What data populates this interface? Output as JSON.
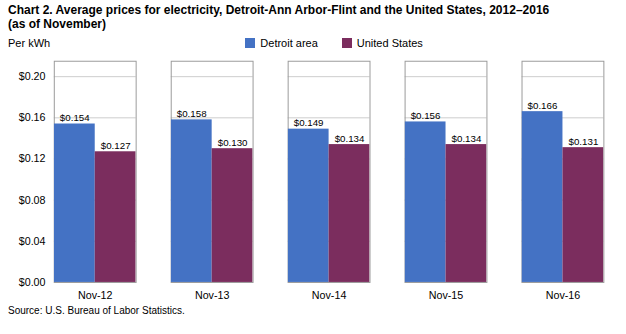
{
  "chart_data": {
    "type": "bar",
    "title": "Chart 2. Average prices for electricity, Detroit-Ann Arbor-Flint and the United States, 2012–2016",
    "subtitle": "(as of November)",
    "y_label": "Per kWh",
    "source": "Source: U.S. Bureau of Labor Statistics.",
    "categories": [
      "Nov-12",
      "Nov-13",
      "Nov-14",
      "Nov-15",
      "Nov-16"
    ],
    "series": [
      {
        "name": "Detroit area",
        "color": "#4472C4",
        "values": [
          0.154,
          0.158,
          0.149,
          0.156,
          0.166
        ],
        "value_labels": [
          "$0.154",
          "$0.158",
          "$0.149",
          "$0.156",
          "$0.166"
        ]
      },
      {
        "name": "United States",
        "color": "#7B2D5E",
        "values": [
          0.127,
          0.13,
          0.134,
          0.134,
          0.131
        ],
        "value_labels": [
          "$0.127",
          "$0.130",
          "$0.134",
          "$0.134",
          "$0.131"
        ]
      }
    ],
    "ylim": [
      0.0,
      0.215
    ],
    "yticks": [
      {
        "value": 0.0,
        "label": "$0.00"
      },
      {
        "value": 0.04,
        "label": "$0.04"
      },
      {
        "value": 0.08,
        "label": "$0.08"
      },
      {
        "value": 0.12,
        "label": "$0.12"
      },
      {
        "value": 0.16,
        "label": "$0.16"
      },
      {
        "value": 0.2,
        "label": "$0.20"
      }
    ],
    "grid": true,
    "legend": "top",
    "data_labels": true
  }
}
